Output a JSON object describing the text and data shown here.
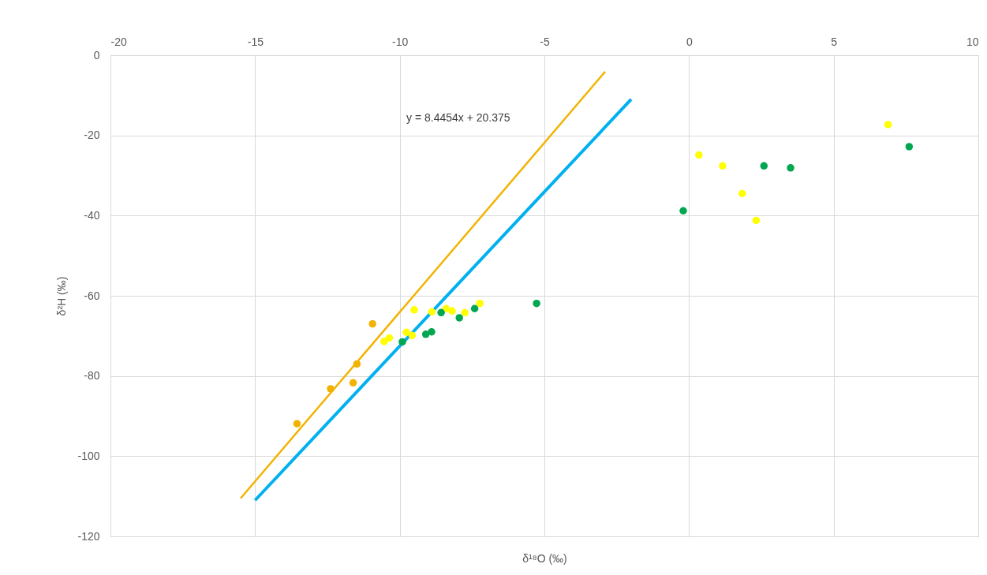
{
  "chart_data": {
    "type": "scatter",
    "xlabel": "δ¹⁸O (‰)",
    "ylabel": "δ²H (‰)",
    "xlim": [
      -20,
      10
    ],
    "xticks": [
      -20,
      -15,
      -10,
      -5,
      0,
      5,
      10
    ],
    "ylim": [
      -120,
      0
    ],
    "yticks": [
      -120,
      -100,
      -80,
      -60,
      -40,
      -20,
      0
    ],
    "grid": true,
    "annotations": [
      "y = 8.4454x + 20.375"
    ],
    "series": [
      {
        "type": "line",
        "color": "#00b0f0",
        "x": [
          -15,
          -2
        ],
        "values": [
          -111,
          -11
        ]
      },
      {
        "type": "line",
        "color": "#f2b300",
        "x": [
          -15.5,
          -2.9
        ],
        "values": [
          -110.5,
          -4.1
        ]
      },
      {
        "color": "#f2b300",
        "marker": "circle",
        "x": [
          -13.55,
          -12.39,
          -11.48,
          -11.61,
          -10.94
        ],
        "values": [
          -91.9,
          -83.2,
          -77.0,
          -81.7,
          -67.0
        ]
      },
      {
        "color": "#ffff00",
        "marker": "circle",
        "x": [
          -10.54,
          -10.36,
          -9.5,
          -9.77,
          -9.57,
          -8.89,
          -8.4,
          -8.19,
          -7.75,
          -7.23,
          0.34,
          1.16,
          1.84,
          2.32,
          6.88
        ],
        "values": [
          -71.4,
          -70.5,
          -63.5,
          -69.1,
          -69.9,
          -64.0,
          -63.2,
          -63.8,
          -64.2,
          -61.9,
          -24.9,
          -27.6,
          -34.5,
          -41.2,
          -17.3
        ]
      },
      {
        "color": "#00a650",
        "marker": "circle",
        "x": [
          -9.91,
          -9.1,
          -8.9,
          -8.57,
          -7.94,
          -7.41,
          -5.27,
          -0.2,
          2.59,
          3.51,
          7.61
        ],
        "values": [
          -71.5,
          -69.6,
          -69.0,
          -64.2,
          -65.5,
          -63.2,
          -61.9,
          -38.8,
          -27.6,
          -28.1,
          -22.8
        ]
      }
    ]
  }
}
